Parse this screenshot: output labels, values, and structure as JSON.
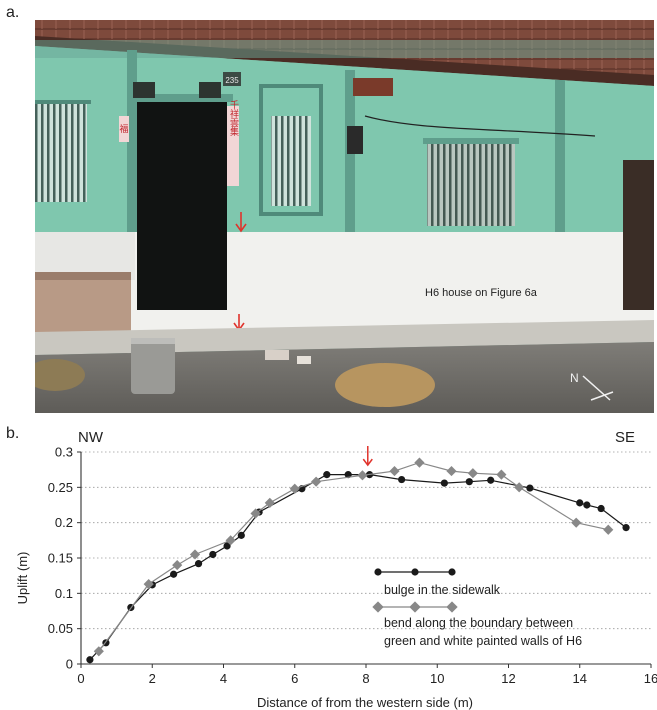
{
  "figure": {
    "panel_a_label": "a.",
    "panel_b_label": "b.",
    "photo": {
      "caption": "H6 house on Figure 6a",
      "house_number_plate": "235",
      "north_label": "N",
      "door_couplet_left": "福",
      "door_couplet_right": "千祥雲集"
    }
  },
  "chart_data": {
    "type": "line",
    "xlabel": "Distance of from the western side (m)",
    "ylabel": "Uplift (m)",
    "xlim": [
      0,
      16
    ],
    "ylim": [
      0,
      0.3
    ],
    "x_ticks": [
      "0",
      "2",
      "4",
      "6",
      "8",
      "10",
      "12",
      "14",
      "16"
    ],
    "y_ticks": [
      "0",
      "0.05",
      "0.1",
      "0.15",
      "0.2",
      "0.25",
      "0.3"
    ],
    "grid": "horizontal dotted",
    "left_corner_label": "NW",
    "right_corner_label": "SE",
    "marker_arrow_x": 8.05,
    "series": [
      {
        "name": "bulge in the sidewalk",
        "marker": "circle",
        "color": "#1a1a1a",
        "points": [
          [
            0.25,
            0.006
          ],
          [
            0.7,
            0.03
          ],
          [
            1.4,
            0.08
          ],
          [
            2.0,
            0.112
          ],
          [
            2.6,
            0.127
          ],
          [
            3.3,
            0.142
          ],
          [
            3.7,
            0.155
          ],
          [
            4.1,
            0.167
          ],
          [
            4.5,
            0.182
          ],
          [
            5.0,
            0.215
          ],
          [
            6.2,
            0.248
          ],
          [
            6.9,
            0.268
          ],
          [
            7.5,
            0.268
          ],
          [
            8.1,
            0.268
          ],
          [
            9.0,
            0.261
          ],
          [
            10.2,
            0.256
          ],
          [
            10.9,
            0.258
          ],
          [
            11.5,
            0.26
          ],
          [
            12.6,
            0.249
          ],
          [
            14.0,
            0.228
          ],
          [
            14.2,
            0.225
          ],
          [
            14.6,
            0.22
          ],
          [
            15.3,
            0.193
          ]
        ]
      },
      {
        "name": "bend along the boundary between green and white painted walls  of H6",
        "marker": "diamond",
        "color": "#888888",
        "points": [
          [
            0.5,
            0.018
          ],
          [
            1.9,
            0.113
          ],
          [
            2.7,
            0.14
          ],
          [
            3.2,
            0.155
          ],
          [
            4.2,
            0.175
          ],
          [
            4.9,
            0.213
          ],
          [
            5.3,
            0.228
          ],
          [
            6.0,
            0.248
          ],
          [
            6.6,
            0.258
          ],
          [
            7.9,
            0.267
          ],
          [
            8.8,
            0.273
          ],
          [
            9.5,
            0.285
          ],
          [
            10.4,
            0.273
          ],
          [
            11.0,
            0.27
          ],
          [
            11.8,
            0.268
          ],
          [
            12.3,
            0.25
          ],
          [
            13.9,
            0.2
          ],
          [
            14.8,
            0.19
          ]
        ]
      }
    ]
  }
}
